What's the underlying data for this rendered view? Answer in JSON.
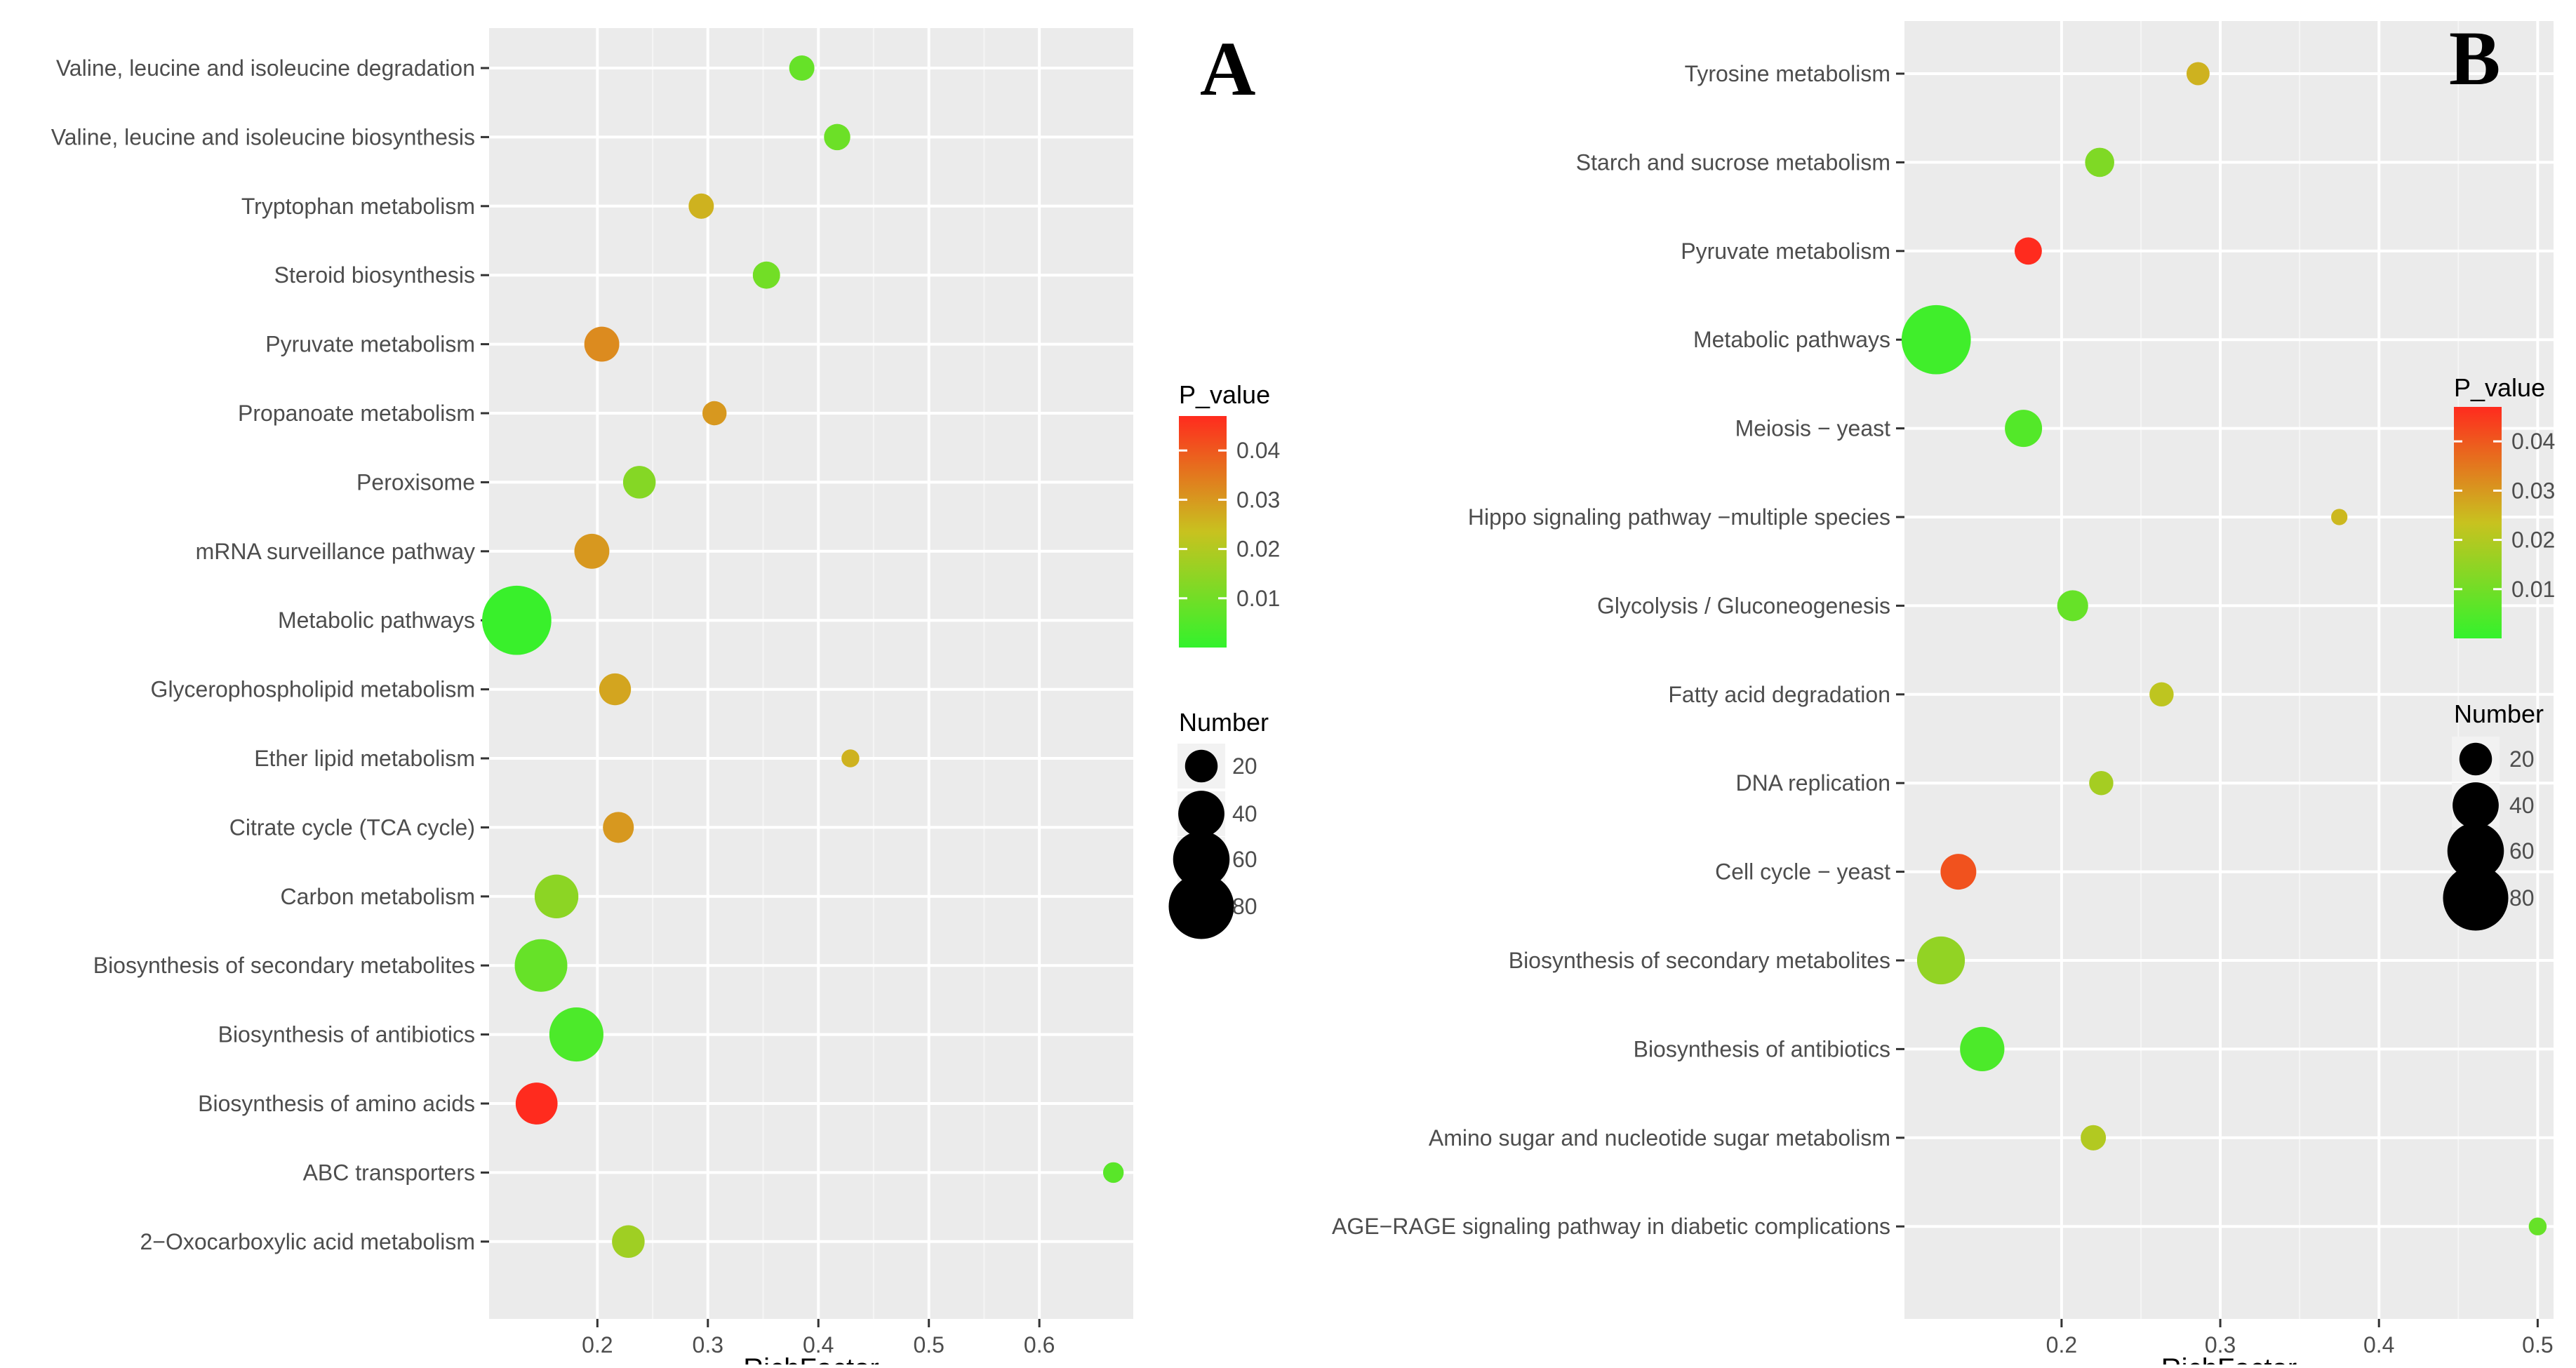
{
  "chart_data": [
    {
      "type": "scatter",
      "panel_label": "A",
      "title": "",
      "xlabel": "RichFactor",
      "ylabel": "",
      "xticks": [
        0.2,
        0.3,
        0.4,
        0.5,
        0.6
      ],
      "xtick_labels": [
        "0.2",
        "0.3",
        "0.4",
        "0.5",
        "0.6"
      ],
      "xlim": [
        0.102,
        0.685
      ],
      "categories": [
        "Valine, leucine and isoleucine degradation",
        "Valine, leucine and isoleucine biosynthesis",
        "Tryptophan metabolism",
        "Steroid biosynthesis",
        "Pyruvate metabolism",
        "Propanoate metabolism",
        "Peroxisome",
        "mRNA surveillance pathway",
        "Metabolic pathways",
        "Glycerophospholipid metabolism",
        "Ether lipid metabolism",
        "Citrate cycle (TCA cycle)",
        "Carbon metabolism",
        "Biosynthesis of secondary metabolites",
        "Biosynthesis of antibiotics",
        "Biosynthesis of amino acids",
        "ABC transporters",
        "2−Oxocarboxylic acid metabolism"
      ],
      "points": [
        {
          "category": "Valine, leucine and isoleucine degradation",
          "richfactor": 0.385,
          "number": 12,
          "p_value": 0.008
        },
        {
          "category": "Valine, leucine and isoleucine biosynthesis",
          "richfactor": 0.417,
          "number": 13,
          "p_value": 0.009
        },
        {
          "category": "Tryptophan metabolism",
          "richfactor": 0.294,
          "number": 12,
          "p_value": 0.026
        },
        {
          "category": "Steroid biosynthesis",
          "richfactor": 0.353,
          "number": 14,
          "p_value": 0.01
        },
        {
          "category": "Pyruvate metabolism",
          "richfactor": 0.204,
          "number": 23,
          "p_value": 0.032
        },
        {
          "category": "Propanoate metabolism",
          "richfactor": 0.306,
          "number": 11,
          "p_value": 0.03
        },
        {
          "category": "Peroxisome",
          "richfactor": 0.238,
          "number": 20,
          "p_value": 0.013
        },
        {
          "category": "mRNA surveillance pathway",
          "richfactor": 0.195,
          "number": 23,
          "p_value": 0.03
        },
        {
          "category": "Metabolic pathways",
          "richfactor": 0.127,
          "number": 90,
          "p_value": 0.001
        },
        {
          "category": "Glycerophospholipid metabolism",
          "richfactor": 0.216,
          "number": 19,
          "p_value": 0.028
        },
        {
          "category": "Ether lipid metabolism",
          "richfactor": 0.429,
          "number": 6,
          "p_value": 0.026
        },
        {
          "category": "Citrate cycle (TCA cycle)",
          "richfactor": 0.219,
          "number": 18,
          "p_value": 0.03
        },
        {
          "category": "Carbon metabolism",
          "richfactor": 0.163,
          "number": 36,
          "p_value": 0.014
        },
        {
          "category": "Biosynthesis of secondary metabolites",
          "richfactor": 0.149,
          "number": 52,
          "p_value": 0.008
        },
        {
          "category": "Biosynthesis of antibiotics",
          "richfactor": 0.181,
          "number": 55,
          "p_value": 0.004
        },
        {
          "category": "Biosynthesis of amino acids",
          "richfactor": 0.145,
          "number": 33,
          "p_value": 0.047
        },
        {
          "category": "ABC transporters",
          "richfactor": 0.667,
          "number": 8,
          "p_value": 0.006
        },
        {
          "category": "2−Oxocarboxylic acid metabolism",
          "richfactor": 0.228,
          "number": 20,
          "p_value": 0.017
        }
      ],
      "color_legend": {
        "title": "P_value",
        "ticks": [
          0.01,
          0.02,
          0.03,
          0.04
        ],
        "tick_labels": [
          "0.01",
          "0.02",
          "0.03",
          "0.04"
        ],
        "range": [
          0.0,
          0.047
        ],
        "low_color": "#33f22c",
        "mid_color": "#c8c21f",
        "high_color": "#ff2b1e"
      },
      "size_legend": {
        "title": "Number",
        "values": [
          20,
          40,
          60,
          80
        ],
        "labels": [
          "20",
          "40",
          "60",
          "80"
        ]
      }
    },
    {
      "type": "scatter",
      "panel_label": "B",
      "title": "",
      "xlabel": "RichFactor",
      "ylabel": "",
      "xticks": [
        0.2,
        0.3,
        0.4,
        0.5
      ],
      "xtick_labels": [
        "0.2",
        "0.3",
        "0.4",
        "0.5"
      ],
      "xlim": [
        0.101,
        0.51
      ],
      "categories": [
        "Tyrosine metabolism",
        "Starch and sucrose metabolism",
        "Pyruvate metabolism",
        "Metabolic pathways",
        "Meiosis − yeast",
        "Hippo signaling pathway −multiple species",
        "Glycolysis / Gluconeogenesis",
        "Fatty acid degradation",
        "DNA replication",
        "Cell cycle − yeast",
        "Biosynthesis of secondary metabolites",
        "Biosynthesis of antibiotics",
        "Amino sugar and nucleotide sugar metabolism",
        "AGE−RAGE signaling pathway in diabetic complications"
      ],
      "points": [
        {
          "category": "Tyrosine metabolism",
          "richfactor": 0.286,
          "number": 10,
          "p_value": 0.026
        },
        {
          "category": "Starch and sucrose metabolism",
          "richfactor": 0.224,
          "number": 16,
          "p_value": 0.012
        },
        {
          "category": "Pyruvate metabolism",
          "richfactor": 0.179,
          "number": 14,
          "p_value": 0.047
        },
        {
          "category": "Metabolic pathways",
          "richfactor": 0.121,
          "number": 90,
          "p_value": 0.002
        },
        {
          "category": "Meiosis − yeast",
          "richfactor": 0.176,
          "number": 26,
          "p_value": 0.005
        },
        {
          "category": "Hippo signaling pathway −multiple species",
          "richfactor": 0.375,
          "number": 5,
          "p_value": 0.025
        },
        {
          "category": "Glycolysis / Gluconeogenesis",
          "richfactor": 0.207,
          "number": 18,
          "p_value": 0.008
        },
        {
          "category": "Fatty acid degradation",
          "richfactor": 0.263,
          "number": 11,
          "p_value": 0.022
        },
        {
          "category": "DNA replication",
          "richfactor": 0.225,
          "number": 11,
          "p_value": 0.018
        },
        {
          "category": "Cell cycle − yeast",
          "richfactor": 0.135,
          "number": 24,
          "p_value": 0.041
        },
        {
          "category": "Biosynthesis of secondary metabolites",
          "richfactor": 0.124,
          "number": 43,
          "p_value": 0.015
        },
        {
          "category": "Biosynthesis of antibiotics",
          "richfactor": 0.15,
          "number": 37,
          "p_value": 0.004
        },
        {
          "category": "Amino sugar and nucleotide sugar metabolism",
          "richfactor": 0.22,
          "number": 12,
          "p_value": 0.02
        },
        {
          "category": "AGE−RAGE signaling pathway in diabetic complications",
          "richfactor": 0.5,
          "number": 6,
          "p_value": 0.008
        }
      ],
      "color_legend": {
        "title": "P_value",
        "ticks": [
          0.01,
          0.02,
          0.03,
          0.04
        ],
        "tick_labels": [
          "0.01",
          "0.02",
          "0.03",
          "0.04"
        ],
        "range": [
          0.0,
          0.047
        ],
        "low_color": "#33f22c",
        "mid_color": "#c8c21f",
        "high_color": "#ff2b1e"
      },
      "size_legend": {
        "title": "Number",
        "values": [
          20,
          40,
          60,
          80
        ],
        "labels": [
          "20",
          "40",
          "60",
          "80"
        ]
      }
    }
  ]
}
